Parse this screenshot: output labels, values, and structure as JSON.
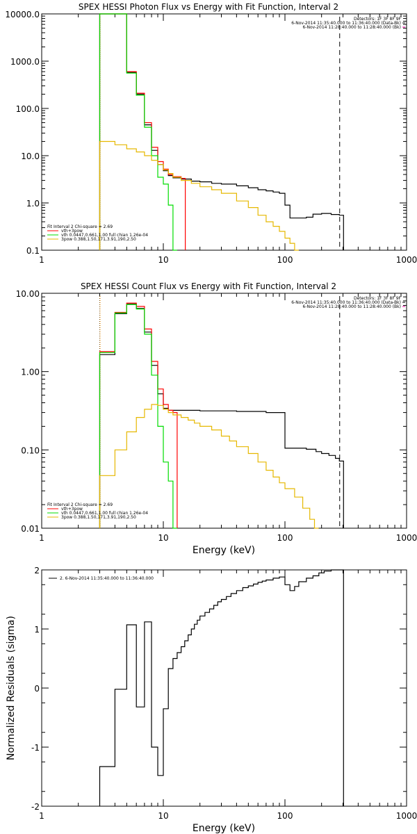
{
  "chart_data": [
    {
      "type": "line",
      "title": "SPEX HESSI Photon Flux vs Energy with Fit Function, Interval 2",
      "xlabel": "",
      "ylabel": "",
      "xscale": "log",
      "yscale": "log",
      "xlim": [
        1,
        1000
      ],
      "ylim": [
        0.1,
        10000
      ],
      "x_ticks": [
        1,
        10,
        100,
        1000
      ],
      "x_tick_labels": [
        "1",
        "10",
        "100",
        "1000"
      ],
      "y_ticks": [
        0.1,
        1,
        10,
        100,
        1000,
        10000
      ],
      "y_tick_labels": [
        "0.1",
        "1.0",
        "10.0",
        "100.0",
        "1000.0",
        "10000.0"
      ],
      "info_lines": [
        "Detectors: 1F 3F 8F 9F",
        "6-Nov-2014 11:35:40.000 to 11:36:40.000 (Data-Bk)",
        "6-Nov-2014 11:28:40.000 to 11:28:40.000 (Bk)"
      ],
      "legend_lines": [
        "Fit Interval 2   Chi-square = 2.69",
        "vth+3pow",
        "vth 0.0447,0.661,1.00  full chian 1.26e-04",
        "3pow 0.388,1.50,171,3.91,190,2.50"
      ],
      "vlines": [
        {
          "x": 3,
          "color": "#000000"
        },
        {
          "x": 3,
          "color": "#ff9900"
        },
        {
          "x": 280,
          "color": "#000000"
        }
      ],
      "series": [
        {
          "color": "#000000",
          "points": [
            [
              3,
              10000
            ],
            [
              4,
              10000
            ],
            [
              5,
              580
            ],
            [
              6,
              200
            ],
            [
              7,
              45
            ],
            [
              8,
              13
            ],
            [
              9,
              6.5
            ],
            [
              10,
              4.8
            ],
            [
              11,
              3.8
            ],
            [
              12,
              3.4
            ],
            [
              14,
              3.2
            ],
            [
              17,
              2.9
            ],
            [
              20,
              2.8
            ],
            [
              25,
              2.6
            ],
            [
              30,
              2.5
            ],
            [
              40,
              2.3
            ],
            [
              50,
              2.1
            ],
            [
              60,
              1.9
            ],
            [
              70,
              1.8
            ],
            [
              80,
              1.7
            ],
            [
              90,
              1.6
            ],
            [
              100,
              0.9
            ],
            [
              110,
              0.48
            ],
            [
              130,
              0.48
            ],
            [
              150,
              0.5
            ],
            [
              170,
              0.58
            ],
            [
              200,
              0.6
            ],
            [
              240,
              0.57
            ],
            [
              280,
              0.55
            ]
          ]
        },
        {
          "color": "#ff0000",
          "points": [
            [
              3,
              10000
            ],
            [
              4,
              10000
            ],
            [
              5,
              600
            ],
            [
              6,
              210
            ],
            [
              7,
              50
            ],
            [
              8,
              15
            ],
            [
              9,
              7.5
            ],
            [
              10,
              5.2
            ],
            [
              11,
              4.0
            ],
            [
              12,
              3.6
            ],
            [
              14,
              3.3
            ]
          ]
        },
        {
          "color": "#00dd00",
          "points": [
            [
              3,
              10000
            ],
            [
              4,
              10000
            ],
            [
              5,
              560
            ],
            [
              6,
              190
            ],
            [
              7,
              40
            ],
            [
              8,
              10
            ],
            [
              9,
              3.5
            ],
            [
              10,
              2.5
            ],
            [
              11,
              0.9
            ],
            [
              12,
              0.1
            ]
          ]
        },
        {
          "color": "#e6b800",
          "points": [
            [
              3,
              20
            ],
            [
              4,
              17
            ],
            [
              5,
              14
            ],
            [
              6,
              12
            ],
            [
              7,
              10
            ],
            [
              8,
              8
            ],
            [
              9,
              6.5
            ],
            [
              10,
              5
            ],
            [
              11,
              4.2
            ],
            [
              12,
              3.5
            ],
            [
              14,
              3.0
            ],
            [
              17,
              2.6
            ],
            [
              20,
              2.2
            ],
            [
              25,
              1.9
            ],
            [
              30,
              1.6
            ],
            [
              40,
              1.1
            ],
            [
              50,
              0.8
            ],
            [
              60,
              0.55
            ],
            [
              70,
              0.4
            ],
            [
              80,
              0.32
            ],
            [
              90,
              0.25
            ],
            [
              100,
              0.18
            ],
            [
              110,
              0.14
            ],
            [
              120,
              0.1
            ]
          ]
        }
      ]
    },
    {
      "type": "line",
      "title": "SPEX HESSI Count Flux vs Energy with Fit Function, Interval 2",
      "xlabel": "Energy (keV)",
      "ylabel": "",
      "xscale": "log",
      "yscale": "log",
      "xlim": [
        1,
        1000
      ],
      "ylim": [
        0.01,
        10
      ],
      "x_ticks": [
        1,
        10,
        100,
        1000
      ],
      "x_tick_labels": [
        "1",
        "10",
        "100",
        "1000"
      ],
      "y_ticks": [
        0.01,
        0.1,
        1,
        10
      ],
      "y_tick_labels": [
        "0.01",
        "0.10",
        "1.00",
        "10.00"
      ],
      "info_lines": [
        "Detectors: 1F 3F 8F 9F",
        "6-Nov-2014 11:35:40.000 to 11:36:40.000 (Data-Bk)",
        "6-Nov-2014 11:28:40.000 to 11:28:40.000 (Bk)"
      ],
      "legend_lines": [
        "Fit Interval 2   Chi-square = 2.69",
        "vth+3pow",
        "vth 0.0447,0.661,1.00  full chian 1.26e-04",
        "3pow 0.388,1.50,171,3.91,190,2.50"
      ],
      "vlines": [
        {
          "x": 3,
          "color": "#000000"
        },
        {
          "x": 3,
          "color": "#ff9900"
        },
        {
          "x": 280,
          "color": "#000000"
        }
      ],
      "series": [
        {
          "color": "#000000",
          "points": [
            [
              3,
              1.65
            ],
            [
              4,
              5.5
            ],
            [
              5,
              7.3
            ],
            [
              6,
              6.4
            ],
            [
              7,
              3.2
            ],
            [
              8,
              1.2
            ],
            [
              9,
              0.52
            ],
            [
              10,
              0.34
            ],
            [
              11,
              0.32
            ],
            [
              12,
              0.32
            ],
            [
              20,
              0.315
            ],
            [
              40,
              0.31
            ],
            [
              70,
              0.3
            ],
            [
              100,
              0.105
            ],
            [
              110,
              0.105
            ],
            [
              150,
              0.102
            ],
            [
              180,
              0.095
            ],
            [
              200,
              0.09
            ],
            [
              230,
              0.085
            ],
            [
              260,
              0.078
            ],
            [
              280,
              0.072
            ]
          ]
        },
        {
          "color": "#ff0000",
          "points": [
            [
              3,
              1.8
            ],
            [
              4,
              5.7
            ],
            [
              5,
              7.5
            ],
            [
              6,
              6.8
            ],
            [
              7,
              3.5
            ],
            [
              8,
              1.35
            ],
            [
              9,
              0.6
            ],
            [
              10,
              0.38
            ],
            [
              11,
              0.32
            ],
            [
              12,
              0.3
            ]
          ]
        },
        {
          "color": "#00dd00",
          "points": [
            [
              3,
              1.75
            ],
            [
              4,
              5.6
            ],
            [
              5,
              7.2
            ],
            [
              6,
              6.3
            ],
            [
              7,
              3.0
            ],
            [
              8,
              0.9
            ],
            [
              9,
              0.2
            ],
            [
              10,
              0.07
            ],
            [
              11,
              0.04
            ],
            [
              12,
              0.01
            ]
          ]
        },
        {
          "color": "#e6b800",
          "points": [
            [
              3,
              0.047
            ],
            [
              4,
              0.1
            ],
            [
              5,
              0.17
            ],
            [
              6,
              0.26
            ],
            [
              7,
              0.33
            ],
            [
              8,
              0.38
            ],
            [
              9,
              0.37
            ],
            [
              10,
              0.33
            ],
            [
              11,
              0.3
            ],
            [
              12,
              0.28
            ],
            [
              14,
              0.26
            ],
            [
              16,
              0.24
            ],
            [
              18,
              0.22
            ],
            [
              20,
              0.2
            ],
            [
              25,
              0.18
            ],
            [
              30,
              0.15
            ],
            [
              35,
              0.13
            ],
            [
              40,
              0.11
            ],
            [
              50,
              0.09
            ],
            [
              60,
              0.07
            ],
            [
              70,
              0.055
            ],
            [
              80,
              0.045
            ],
            [
              90,
              0.038
            ],
            [
              100,
              0.032
            ],
            [
              120,
              0.025
            ],
            [
              140,
              0.018
            ],
            [
              160,
              0.013
            ],
            [
              175,
              0.01
            ]
          ]
        }
      ]
    },
    {
      "type": "line",
      "title": "",
      "xlabel": "Energy (keV)",
      "ylabel": "Normalized Residuals (sigma)",
      "xscale": "log",
      "yscale": "linear",
      "xlim": [
        1,
        1000
      ],
      "ylim": [
        -2,
        2
      ],
      "x_ticks": [
        1,
        10,
        100,
        1000
      ],
      "x_tick_labels": [
        "1",
        "10",
        "100",
        "1000"
      ],
      "y_ticks": [
        -2,
        -1,
        0,
        1,
        2
      ],
      "y_tick_labels": [
        "-2",
        "-1",
        "0",
        "1",
        "2"
      ],
      "legend_lines": [
        "2. 6-Nov-2014 11:35:40.000 to 11:36:40.000"
      ],
      "vlines": [],
      "series": [
        {
          "color": "#000000",
          "points": [
            [
              3,
              -1.33
            ],
            [
              4,
              -0.02
            ],
            [
              5,
              1.07
            ],
            [
              6,
              -0.32
            ],
            [
              7,
              1.12
            ],
            [
              8,
              -1.0
            ],
            [
              9,
              -1.48
            ],
            [
              10,
              -0.35
            ],
            [
              11,
              0.33
            ],
            [
              12,
              0.5
            ],
            [
              13,
              0.6
            ],
            [
              14,
              0.7
            ],
            [
              15,
              0.8
            ],
            [
              16,
              0.9
            ],
            [
              17,
              1.0
            ],
            [
              18,
              1.08
            ],
            [
              19,
              1.15
            ],
            [
              20,
              1.22
            ],
            [
              22,
              1.28
            ],
            [
              24,
              1.34
            ],
            [
              26,
              1.4
            ],
            [
              28,
              1.46
            ],
            [
              30,
              1.5
            ],
            [
              33,
              1.55
            ],
            [
              36,
              1.6
            ],
            [
              40,
              1.65
            ],
            [
              45,
              1.7
            ],
            [
              50,
              1.73
            ],
            [
              55,
              1.76
            ],
            [
              60,
              1.79
            ],
            [
              65,
              1.81
            ],
            [
              70,
              1.83
            ],
            [
              80,
              1.86
            ],
            [
              90,
              1.88
            ],
            [
              100,
              1.75
            ],
            [
              110,
              1.65
            ],
            [
              120,
              1.72
            ],
            [
              130,
              1.8
            ],
            [
              150,
              1.86
            ],
            [
              170,
              1.9
            ],
            [
              190,
              1.95
            ],
            [
              210,
              1.98
            ],
            [
              240,
              2.0
            ],
            [
              280,
              2.0
            ]
          ]
        }
      ]
    }
  ]
}
